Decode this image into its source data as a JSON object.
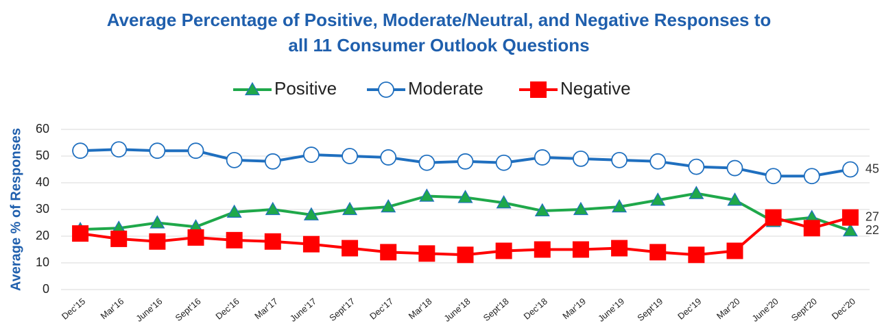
{
  "chart_data": {
    "type": "line",
    "title": [
      "Average Percentage of Positive, Moderate/Neutral, and Negative Responses to",
      "all 11 Consumer Outlook Questions"
    ],
    "y_label": "Average % of Responses",
    "categories": [
      "Dec'15",
      "Mar'16",
      "June'16",
      "Sept'16",
      "Dec'16",
      "Mar'17",
      "June'17",
      "Sept'17",
      "Dec'17",
      "Mar'18",
      "June'18",
      "Sept'18",
      "Dec'18",
      "Mar'19",
      "June'19",
      "Sept'19",
      "Dec'19",
      "Mar'20",
      "June'20",
      "Sept'20",
      "Dec'20"
    ],
    "series": [
      {
        "name": "Positive",
        "color": "#1fa84a",
        "marker": "triangle",
        "values": [
          22.5,
          23,
          25,
          23.5,
          29,
          30,
          28,
          30,
          31,
          35,
          34.5,
          32.5,
          29.5,
          30,
          31,
          33.5,
          36,
          33.5,
          25.5,
          27,
          22
        ]
      },
      {
        "name": "Moderate",
        "color": "#1f6fbf",
        "marker": "circle",
        "values": [
          52,
          52.5,
          52,
          52,
          48.5,
          48,
          50.5,
          50,
          49.5,
          47.5,
          48,
          47.5,
          49.5,
          49,
          48.5,
          48,
          46,
          45.5,
          42.5,
          42.5,
          45
        ]
      },
      {
        "name": "Negative",
        "color": "#ff0000",
        "marker": "square",
        "values": [
          21,
          19,
          18,
          19.5,
          18.5,
          18,
          17,
          15.5,
          14,
          13.5,
          13,
          14.5,
          15,
          15,
          15.5,
          14,
          13,
          14.5,
          27,
          23,
          27
        ]
      }
    ],
    "ylim": [
      0,
      60
    ],
    "yticks": [
      0,
      10,
      20,
      30,
      40,
      50,
      60
    ],
    "grid": true,
    "legend": "top"
  }
}
